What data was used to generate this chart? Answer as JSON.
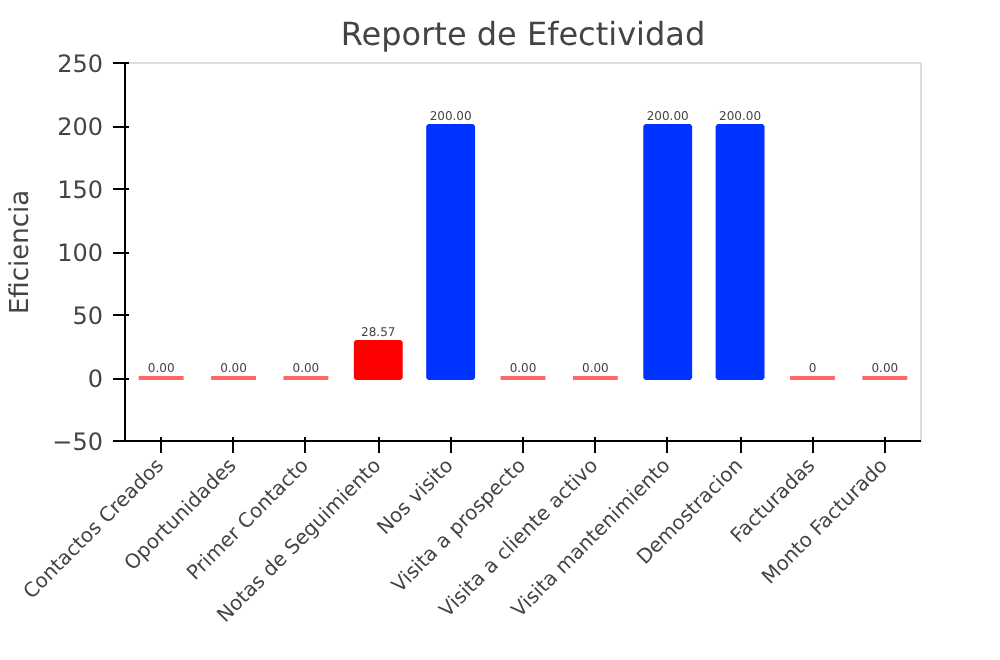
{
  "chart_data": {
    "type": "bar",
    "title": "Reporte de Efectividad",
    "ylabel": "Eficiencia",
    "categories": [
      "Contactos Creados",
      "Oportunidades",
      "Primer Contacto",
      "Notas de Seguimiento",
      "Nos visito",
      "Visita a prospecto",
      "Visita a cliente activo",
      "Visita mantenimiento",
      "Demostracion",
      "Facturadas",
      "Monto Facturado"
    ],
    "values": [
      0,
      0,
      0,
      28.57,
      200,
      0,
      0,
      200,
      200,
      0,
      0
    ],
    "colors": [
      "#ff6666",
      "#ff6666",
      "#ff6666",
      "#ff0000",
      "#0033ff",
      "#ff6666",
      "#ff6666",
      "#0033ff",
      "#0033ff",
      "#ff6666",
      "#ff6666"
    ],
    "value_labels": [
      "0.00",
      "0.00",
      "0.00",
      "28.57",
      "200.00",
      "0.00",
      "0.00",
      "200.00",
      "200.00",
      "0",
      "0.00"
    ],
    "ylim": [
      -50,
      250
    ],
    "yticks": [
      -50,
      0,
      50,
      100,
      150,
      200,
      250
    ],
    "grid": false
  }
}
